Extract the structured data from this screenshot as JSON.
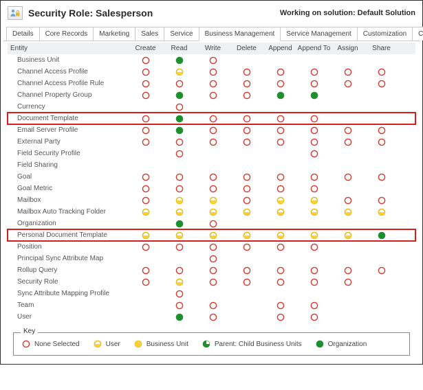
{
  "header": {
    "title": "Security Role: Salesperson",
    "working_label": "Working on solution: Default Solution"
  },
  "tabs": [
    {
      "label": "Details"
    },
    {
      "label": "Core Records"
    },
    {
      "label": "Marketing"
    },
    {
      "label": "Sales"
    },
    {
      "label": "Service"
    },
    {
      "label": "Business Management",
      "active": true
    },
    {
      "label": "Service Management"
    },
    {
      "label": "Customization"
    },
    {
      "label": "Custom Entities"
    }
  ],
  "columns": [
    "Entity",
    "Create",
    "Read",
    "Write",
    "Delete",
    "Append",
    "Append To",
    "Assign",
    "Share"
  ],
  "privilege_levels": {
    "none": {
      "kind": "none",
      "stroke": "#d63a2b",
      "fill": "none"
    },
    "user": {
      "kind": "half",
      "stroke": "#e2b500",
      "fill": "#f5d23a"
    },
    "bu": {
      "kind": "full",
      "stroke": "#e2b500",
      "fill": "#f5d23a"
    },
    "pcbu": {
      "kind": "pac",
      "stroke": "#1e8f2f",
      "fill": "#1e8f2f"
    },
    "org": {
      "kind": "full",
      "stroke": "#1e8f2f",
      "fill": "#1e8f2f"
    }
  },
  "rows": [
    {
      "name": "Business Unit",
      "p": [
        "none",
        "org",
        "none",
        "",
        "",
        "",
        "",
        ""
      ]
    },
    {
      "name": "Channel Access Profile",
      "p": [
        "none",
        "user",
        "none",
        "none",
        "none",
        "none",
        "none",
        "none"
      ]
    },
    {
      "name": "Channel Access Profile Rule",
      "p": [
        "none",
        "none",
        "none",
        "none",
        "none",
        "none",
        "none",
        "none"
      ]
    },
    {
      "name": "Channel Property Group",
      "p": [
        "none",
        "org",
        "none",
        "none",
        "org",
        "org",
        "",
        ""
      ]
    },
    {
      "name": "Currency",
      "p": [
        "",
        "none",
        "",
        "",
        "",
        "",
        "",
        ""
      ]
    },
    {
      "name": "Document Template",
      "p": [
        "none",
        "org",
        "none",
        "none",
        "none",
        "none",
        "",
        ""
      ],
      "highlight": true
    },
    {
      "name": "Email Server Profile",
      "p": [
        "none",
        "org",
        "none",
        "none",
        "none",
        "none",
        "none",
        "none"
      ]
    },
    {
      "name": "External Party",
      "p": [
        "none",
        "none",
        "none",
        "none",
        "none",
        "none",
        "none",
        "none"
      ]
    },
    {
      "name": "Field Security Profile",
      "p": [
        "",
        "none",
        "",
        "",
        "",
        "none",
        "",
        ""
      ]
    },
    {
      "name": "Field Sharing",
      "p": [
        "",
        "",
        "",
        "",
        "",
        "",
        "",
        ""
      ]
    },
    {
      "name": "Goal",
      "p": [
        "none",
        "none",
        "none",
        "none",
        "none",
        "none",
        "none",
        "none"
      ]
    },
    {
      "name": "Goal Metric",
      "p": [
        "none",
        "none",
        "none",
        "none",
        "none",
        "none",
        "",
        ""
      ]
    },
    {
      "name": "Mailbox",
      "p": [
        "none",
        "user",
        "user",
        "none",
        "user",
        "user",
        "none",
        "none"
      ]
    },
    {
      "name": "Mailbox Auto Tracking Folder",
      "p": [
        "user",
        "user",
        "user",
        "user",
        "user",
        "user",
        "user",
        "user"
      ]
    },
    {
      "name": "Organization",
      "p": [
        "",
        "org",
        "none",
        "",
        "",
        "",
        "",
        ""
      ]
    },
    {
      "name": "Personal Document Template",
      "p": [
        "user",
        "user",
        "user",
        "user",
        "user",
        "user",
        "user",
        "org"
      ],
      "highlight": true
    },
    {
      "name": "Position",
      "p": [
        "none",
        "none",
        "none",
        "none",
        "none",
        "none",
        "",
        ""
      ]
    },
    {
      "name": "Principal Sync Attribute Map",
      "p": [
        "",
        "",
        "none",
        "",
        "",
        "",
        "",
        ""
      ]
    },
    {
      "name": "Rollup Query",
      "p": [
        "none",
        "none",
        "none",
        "none",
        "none",
        "none",
        "none",
        "none"
      ]
    },
    {
      "name": "Security Role",
      "p": [
        "none",
        "user",
        "none",
        "none",
        "none",
        "none",
        "none",
        ""
      ]
    },
    {
      "name": "Sync Attribute Mapping Profile",
      "p": [
        "",
        "none",
        "",
        "",
        "",
        "",
        "",
        ""
      ]
    },
    {
      "name": "Team",
      "p": [
        "",
        "none",
        "none",
        "",
        "none",
        "none",
        "",
        ""
      ]
    },
    {
      "name": "User",
      "p": [
        "",
        "org",
        "none",
        "",
        "none",
        "none",
        "",
        ""
      ]
    }
  ],
  "key": {
    "label": "Key",
    "items": [
      {
        "level": "none",
        "label": "None Selected"
      },
      {
        "level": "user",
        "label": "User"
      },
      {
        "level": "bu",
        "label": "Business Unit"
      },
      {
        "level": "pcbu",
        "label": "Parent: Child Business Units"
      },
      {
        "level": "org",
        "label": "Organization"
      }
    ]
  },
  "colors": {
    "highlight": "#d21f1f",
    "header_bg": "#eef0f2",
    "border": "#c9c9c9"
  }
}
